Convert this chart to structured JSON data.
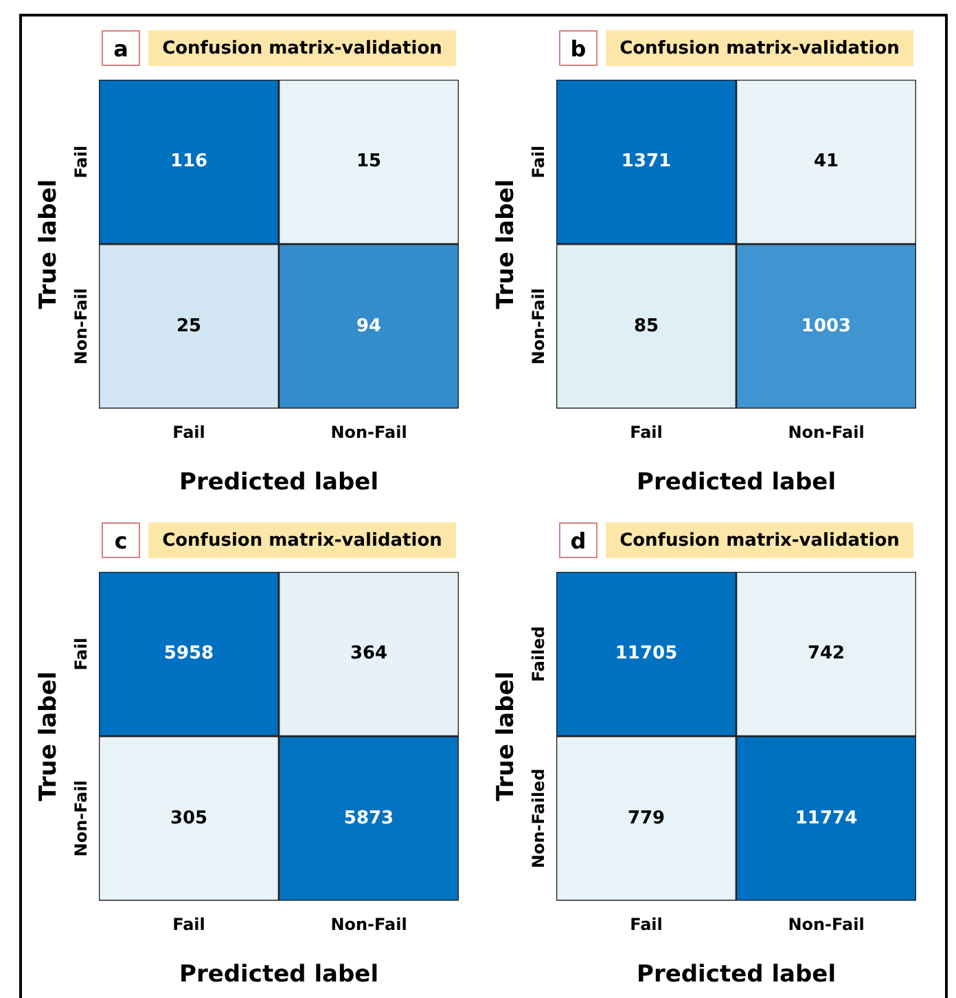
{
  "chart_data": [
    {
      "type": "heatmap",
      "title": "Confusion matrix-validation",
      "annotations": [
        "a"
      ],
      "xlabel": "Predicted label",
      "ylabel": "True label",
      "categories": [
        "Fail",
        "Non-Fail"
      ],
      "y_categories": [
        "Fail",
        "Non-Fail"
      ],
      "cells": [
        [
          116,
          15
        ],
        [
          25,
          94
        ]
      ],
      "data_labels": true
    },
    {
      "type": "heatmap",
      "title": "Confusion matrix-validation",
      "annotations": [
        "b"
      ],
      "xlabel": "Predicted label",
      "ylabel": "True label",
      "categories": [
        "Fail",
        "Non-Fail"
      ],
      "y_categories": [
        "Fail",
        "Non-Fail"
      ],
      "cells": [
        [
          1371,
          41
        ],
        [
          85,
          1003
        ]
      ],
      "data_labels": true
    },
    {
      "type": "heatmap",
      "title": "Confusion matrix-validation",
      "annotations": [
        "c"
      ],
      "xlabel": "Predicted label",
      "ylabel": "True label",
      "categories": [
        "Fail",
        "Non-Fail"
      ],
      "y_categories": [
        "Fail",
        "Non-Fail"
      ],
      "cells": [
        [
          5958,
          364
        ],
        [
          305,
          5873
        ]
      ],
      "data_labels": true
    },
    {
      "type": "heatmap",
      "title": "Confusion matrix-validation",
      "annotations": [
        "d"
      ],
      "xlabel": "Predicted label",
      "ylabel": "True label",
      "categories": [
        "Fail",
        "Non-Fail"
      ],
      "y_categories": [
        "Failed",
        "Non-Failed"
      ],
      "cells": [
        [
          11705,
          742
        ],
        [
          779,
          11774
        ]
      ],
      "data_labels": true
    }
  ]
}
